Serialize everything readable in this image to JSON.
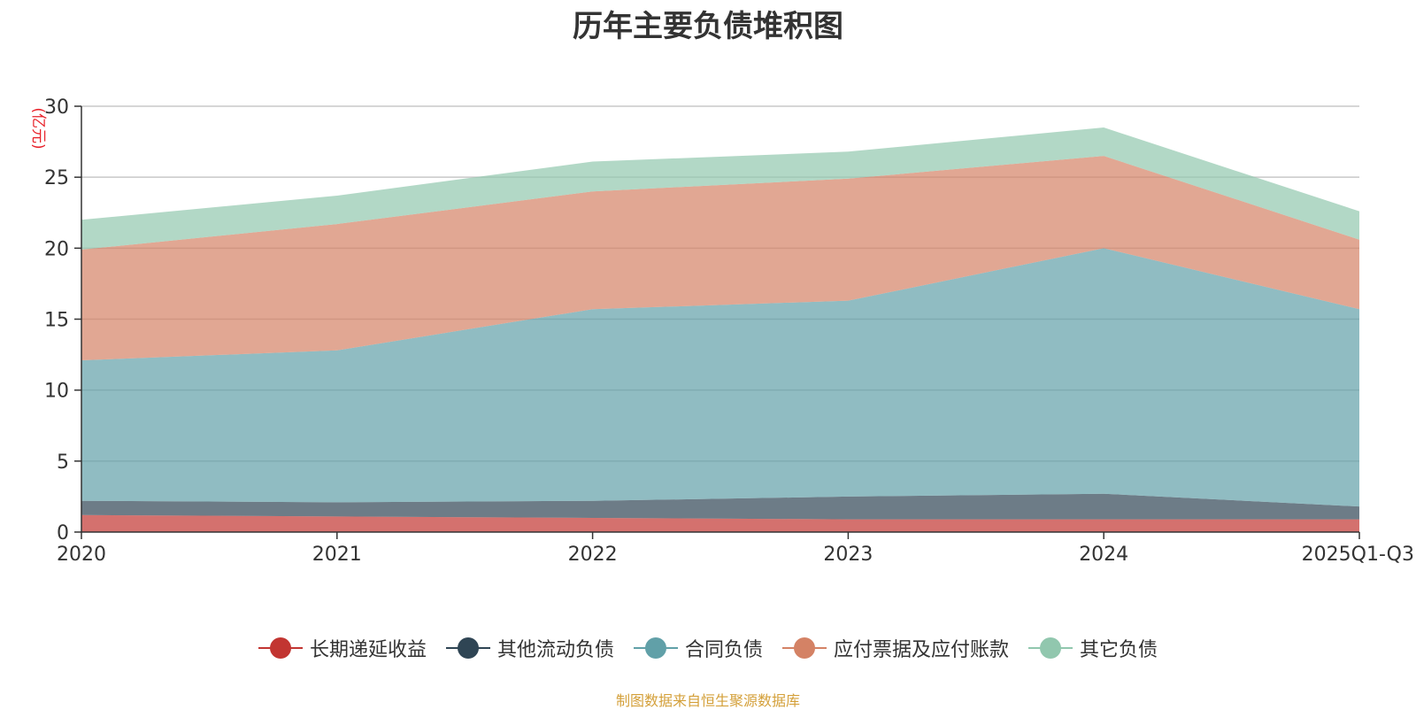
{
  "chart_data": {
    "type": "area",
    "stacked": true,
    "title": "历年主要负债堆积图",
    "ylabel": "(亿元)",
    "xlabel": "",
    "ylim": [
      0,
      30
    ],
    "yticks": [
      0,
      5,
      10,
      15,
      20,
      25,
      30
    ],
    "grid": true,
    "legend_position": "bottom",
    "categories": [
      "2020",
      "2021",
      "2022",
      "2023",
      "2024",
      "2025Q1-Q3"
    ],
    "series": [
      {
        "name": "长期递延收益",
        "color": "#c23531",
        "values": [
          1.2,
          1.1,
          1.0,
          0.9,
          0.9,
          0.9
        ]
      },
      {
        "name": "其他流动负债",
        "color": "#2f4554",
        "values": [
          1.0,
          1.0,
          1.2,
          1.6,
          1.8,
          0.9
        ]
      },
      {
        "name": "合同负债",
        "color": "#61a0a8",
        "values": [
          9.9,
          10.7,
          13.5,
          13.8,
          17.3,
          13.9
        ]
      },
      {
        "name": "应付票据及应付账款",
        "color": "#d48265",
        "values": [
          7.8,
          8.9,
          8.3,
          8.6,
          6.5,
          4.9
        ]
      },
      {
        "name": "其它负债",
        "color": "#91c7ae",
        "values": [
          2.1,
          2.0,
          2.1,
          1.9,
          2.0,
          2.0
        ]
      }
    ],
    "source_note": "制图数据来自恒生聚源数据库"
  }
}
